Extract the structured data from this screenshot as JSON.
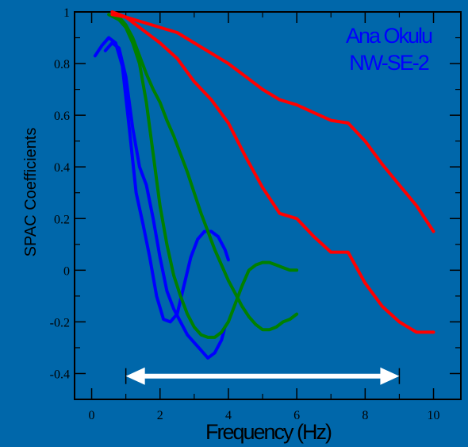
{
  "chart_data": {
    "type": "line",
    "title": "",
    "xlabel": "Frequency (Hz)",
    "ylabel": "SPAC Coefficients",
    "xlim": [
      -0.5,
      10.8
    ],
    "ylim": [
      -0.5,
      1.0
    ],
    "xticks": [
      0,
      2,
      4,
      6,
      8,
      10
    ],
    "xtick_labels": [
      "0",
      "2",
      "4",
      "6",
      "8",
      "10"
    ],
    "yticks": [
      -0.4,
      -0.2,
      0,
      0.2,
      0.4,
      0.6,
      0.8,
      1
    ],
    "ytick_labels": [
      "-0.4",
      "-0.2",
      "0",
      "0.2",
      "0.4",
      "0.6",
      "0.8",
      "1"
    ],
    "annotation": [
      "Ana Okulu",
      "NW-SE-2"
    ],
    "annotation_color": "#0000ff",
    "range_arrow": {
      "from": 1,
      "to": 9,
      "y": -0.41,
      "color": "#ffffff"
    },
    "series": [
      {
        "color": "#0000ff",
        "x": [
          0.1,
          0.3,
          0.5,
          0.7,
          0.9,
          1.1,
          1.3,
          1.5,
          1.7,
          1.9,
          2.1,
          2.3,
          2.5,
          2.7,
          2.9,
          3.1,
          3.3,
          3.5,
          3.7,
          3.9,
          4.0
        ],
        "y": [
          0.83,
          0.87,
          0.9,
          0.88,
          0.79,
          0.55,
          0.3,
          0.18,
          0.05,
          -0.1,
          -0.19,
          -0.2,
          -0.17,
          -0.06,
          0.05,
          0.12,
          0.15,
          0.15,
          0.13,
          0.08,
          0.04
        ]
      },
      {
        "color": "#0000ff",
        "x": [
          0.4,
          0.6,
          0.8,
          1.0,
          1.2,
          1.4,
          1.6,
          1.8,
          2.0,
          2.2,
          2.4,
          2.6,
          2.8,
          3.0,
          3.2,
          3.4,
          3.5,
          3.6,
          3.8,
          3.9
        ],
        "y": [
          0.85,
          0.88,
          0.86,
          0.75,
          0.55,
          0.4,
          0.33,
          0.2,
          0.05,
          -0.08,
          -0.15,
          -0.2,
          -0.25,
          -0.28,
          -0.31,
          -0.34,
          -0.33,
          -0.32,
          -0.27,
          -0.22
        ]
      },
      {
        "color": "#008000",
        "x": [
          0.5,
          0.8,
          1.0,
          1.2,
          1.4,
          1.6,
          1.8,
          2.0,
          2.2,
          2.4,
          2.6,
          2.8,
          3.0,
          3.2,
          3.4,
          3.6,
          3.8,
          4.0,
          4.2,
          4.4,
          4.6,
          4.8,
          5.0,
          5.2,
          5.4,
          5.6,
          5.8,
          6.0
        ],
        "y": [
          0.99,
          0.97,
          0.94,
          0.88,
          0.8,
          0.65,
          0.45,
          0.25,
          0.1,
          -0.02,
          -0.1,
          -0.17,
          -0.22,
          -0.25,
          -0.26,
          -0.26,
          -0.24,
          -0.2,
          -0.13,
          -0.06,
          0.0,
          0.02,
          0.03,
          0.03,
          0.02,
          0.01,
          0.0,
          0.0
        ]
      },
      {
        "color": "#008000",
        "x": [
          0.6,
          0.8,
          1.0,
          1.2,
          1.4,
          1.6,
          1.8,
          2.0,
          2.2,
          2.4,
          2.6,
          2.8,
          3.0,
          3.2,
          3.4,
          3.6,
          3.8,
          4.0,
          4.2,
          4.4,
          4.6,
          4.8,
          5.0,
          5.2,
          5.4,
          5.6,
          5.8,
          6.0
        ],
        "y": [
          0.99,
          0.98,
          0.95,
          0.9,
          0.83,
          0.76,
          0.7,
          0.65,
          0.58,
          0.52,
          0.45,
          0.38,
          0.3,
          0.22,
          0.15,
          0.08,
          0.02,
          -0.04,
          -0.09,
          -0.14,
          -0.18,
          -0.21,
          -0.23,
          -0.23,
          -0.22,
          -0.2,
          -0.19,
          -0.17
        ]
      },
      {
        "color": "#ff0000",
        "x": [
          0.6,
          1.0,
          1.5,
          2.0,
          2.5,
          3.0,
          3.5,
          4.0,
          4.5,
          5.0,
          5.5,
          6.0,
          6.5,
          7.0,
          7.5,
          8.0,
          8.5,
          9.0,
          9.5,
          10.0
        ],
        "y": [
          1.0,
          0.98,
          0.96,
          0.94,
          0.92,
          0.88,
          0.84,
          0.8,
          0.75,
          0.7,
          0.66,
          0.64,
          0.61,
          0.58,
          0.57,
          0.5,
          0.41,
          0.33,
          0.25,
          0.15
        ]
      },
      {
        "color": "#ff0000",
        "x": [
          0.6,
          1.0,
          1.5,
          2.0,
          2.5,
          3.0,
          3.5,
          4.0,
          4.5,
          5.0,
          5.5,
          6.0,
          6.5,
          7.0,
          7.5,
          8.0,
          8.5,
          9.0,
          9.5,
          10.0
        ],
        "y": [
          0.99,
          0.98,
          0.93,
          0.88,
          0.82,
          0.73,
          0.66,
          0.57,
          0.44,
          0.32,
          0.22,
          0.2,
          0.13,
          0.07,
          0.07,
          -0.05,
          -0.14,
          -0.2,
          -0.24,
          -0.24
        ]
      }
    ]
  }
}
